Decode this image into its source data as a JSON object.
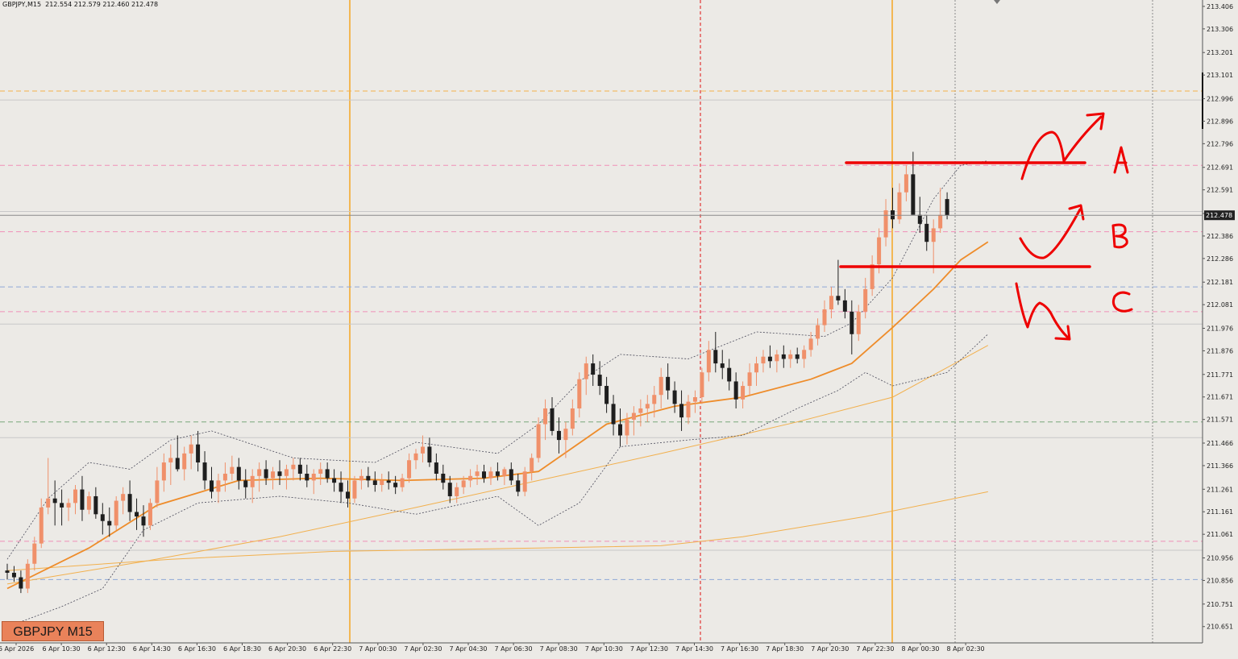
{
  "header": {
    "symbol_timeframe": "GBPJPY,M15",
    "ohlc": "212.554 212.579 212.460 212.478"
  },
  "badge": {
    "label": "GBPJPY M15"
  },
  "colors": {
    "background": "#eceae6",
    "bull_candle": "#f0906a",
    "bear_candle": "#1e1e1e",
    "ma_fast": "#ee8c2a",
    "ma_slow": "#f2b04d",
    "bollinger": "#4a4a5a",
    "annotation_red": "#ee0000",
    "current_price_tag": "#222222"
  },
  "chart_data": {
    "type": "candlestick",
    "symbol": "GBPJPY",
    "timeframe": "M15",
    "ylim": [
      210.6,
      213.42
    ],
    "current_price": 212.478,
    "price_ticks": [
      "213.406",
      "213.306",
      "213.201",
      "213.101",
      "212.996",
      "212.896",
      "212.796",
      "212.691",
      "212.591",
      "212.486",
      "212.386",
      "212.286",
      "212.181",
      "212.081",
      "211.976",
      "211.876",
      "211.771",
      "211.671",
      "211.571",
      "211.466",
      "211.366",
      "211.261",
      "211.161",
      "211.061",
      "210.956",
      "210.856",
      "210.751",
      "210.651"
    ],
    "time_ticks": [
      "6 Apr 2026",
      "6 Apr 10:30",
      "6 Apr 12:30",
      "6 Apr 14:30",
      "6 Apr 16:30",
      "6 Apr 18:30",
      "6 Apr 20:30",
      "6 Apr 22:30",
      "7 Apr 00:30",
      "7 Apr 02:30",
      "7 Apr 04:30",
      "7 Apr 06:30",
      "7 Apr 08:30",
      "7 Apr 10:30",
      "7 Apr 12:30",
      "7 Apr 14:30",
      "7 Apr 16:30",
      "7 Apr 18:30",
      "7 Apr 20:30",
      "7 Apr 22:30",
      "8 Apr 00:30",
      "8 Apr 02:30"
    ],
    "horizontal_levels": [
      {
        "price": 213.03,
        "style": "dashed",
        "color": "#f5b24a"
      },
      {
        "price": 212.99,
        "style": "solid",
        "color": "#c8c8c8"
      },
      {
        "price": 212.7,
        "style": "dashed",
        "color": "#f08fb8"
      },
      {
        "price": 212.495,
        "style": "solid",
        "color": "#c8c8c8"
      },
      {
        "price": 212.405,
        "style": "dashed",
        "color": "#f08fb8"
      },
      {
        "price": 212.16,
        "style": "dashed",
        "color": "#8fa8d6"
      },
      {
        "price": 212.05,
        "style": "dashed",
        "color": "#f08fb8"
      },
      {
        "price": 211.995,
        "style": "solid",
        "color": "#c8c8c8"
      },
      {
        "price": 211.56,
        "style": "dashed",
        "color": "#79a87a"
      },
      {
        "price": 211.49,
        "style": "solid",
        "color": "#c8c8c8"
      },
      {
        "price": 211.03,
        "style": "dashed",
        "color": "#f08fb8"
      },
      {
        "price": 210.99,
        "style": "solid",
        "color": "#c8c8c8"
      },
      {
        "price": 210.86,
        "style": "dashed",
        "color": "#8fa8d6"
      }
    ],
    "annotations": [
      {
        "label": "A",
        "level": 212.703
      },
      {
        "label": "B",
        "level": 212.405
      },
      {
        "label": "C",
        "level": 212.165
      }
    ],
    "candles": [
      [
        210.9,
        210.93,
        210.86,
        210.89
      ],
      [
        210.89,
        210.92,
        210.85,
        210.87
      ],
      [
        210.87,
        210.9,
        210.8,
        210.82
      ],
      [
        210.82,
        210.95,
        210.8,
        210.93
      ],
      [
        210.93,
        211.05,
        210.9,
        211.02
      ],
      [
        211.02,
        211.22,
        211.0,
        211.18
      ],
      [
        211.18,
        211.4,
        211.15,
        211.22
      ],
      [
        211.22,
        211.3,
        211.1,
        211.2
      ],
      [
        211.2,
        211.26,
        211.1,
        211.18
      ],
      [
        211.18,
        211.22,
        211.12,
        211.2
      ],
      [
        211.2,
        211.28,
        211.15,
        211.26
      ],
      [
        211.26,
        211.32,
        211.12,
        211.17
      ],
      [
        211.17,
        211.25,
        211.15,
        211.23
      ],
      [
        211.23,
        211.27,
        211.13,
        211.15
      ],
      [
        211.15,
        211.2,
        211.06,
        211.12
      ],
      [
        211.12,
        211.18,
        211.05,
        211.1
      ],
      [
        211.1,
        211.23,
        211.08,
        211.21
      ],
      [
        211.21,
        211.27,
        211.15,
        211.24
      ],
      [
        211.24,
        211.3,
        211.12,
        211.16
      ],
      [
        211.16,
        211.22,
        211.08,
        211.14
      ],
      [
        211.14,
        211.19,
        211.05,
        211.1
      ],
      [
        211.1,
        211.22,
        211.08,
        211.2
      ],
      [
        211.2,
        211.36,
        211.18,
        211.3
      ],
      [
        211.3,
        211.42,
        211.25,
        211.38
      ],
      [
        211.38,
        211.46,
        211.28,
        211.4
      ],
      [
        211.4,
        211.5,
        211.34,
        211.35
      ],
      [
        211.35,
        211.45,
        211.3,
        211.42
      ],
      [
        211.42,
        211.5,
        211.35,
        211.46
      ],
      [
        211.46,
        211.52,
        211.34,
        211.38
      ],
      [
        211.38,
        211.43,
        211.26,
        211.3
      ],
      [
        211.3,
        211.36,
        211.22,
        211.25
      ],
      [
        211.25,
        211.33,
        211.2,
        211.3
      ],
      [
        211.3,
        211.38,
        211.25,
        211.33
      ],
      [
        211.33,
        211.41,
        211.3,
        211.36
      ],
      [
        211.36,
        211.4,
        211.26,
        211.3
      ],
      [
        211.3,
        211.35,
        211.22,
        211.27
      ],
      [
        211.27,
        211.35,
        211.2,
        211.32
      ],
      [
        211.32,
        211.38,
        211.25,
        211.35
      ],
      [
        211.35,
        211.39,
        211.28,
        211.31
      ],
      [
        211.31,
        211.36,
        211.26,
        211.34
      ],
      [
        211.34,
        211.39,
        211.28,
        211.32
      ],
      [
        211.32,
        211.37,
        211.26,
        211.35
      ],
      [
        211.35,
        211.4,
        211.3,
        211.37
      ],
      [
        211.37,
        211.4,
        211.3,
        211.33
      ],
      [
        211.33,
        211.37,
        211.27,
        211.3
      ],
      [
        211.3,
        211.35,
        211.24,
        211.33
      ],
      [
        211.33,
        211.38,
        211.28,
        211.35
      ],
      [
        211.35,
        211.38,
        211.29,
        211.31
      ],
      [
        211.31,
        211.35,
        211.25,
        211.29
      ],
      [
        211.29,
        211.34,
        211.2,
        211.25
      ],
      [
        211.25,
        211.3,
        211.18,
        211.22
      ],
      [
        211.22,
        211.32,
        211.2,
        211.3
      ],
      [
        211.3,
        211.35,
        211.26,
        211.32
      ],
      [
        211.32,
        211.36,
        211.27,
        211.3
      ],
      [
        211.3,
        211.34,
        211.25,
        211.28
      ],
      [
        211.28,
        211.33,
        211.25,
        211.3
      ],
      [
        211.3,
        211.34,
        211.26,
        211.29
      ],
      [
        211.29,
        211.32,
        211.24,
        211.27
      ],
      [
        211.27,
        211.33,
        211.25,
        211.31
      ],
      [
        211.31,
        211.42,
        211.29,
        211.39
      ],
      [
        211.39,
        211.44,
        211.35,
        211.42
      ],
      [
        211.42,
        211.5,
        211.38,
        211.45
      ],
      [
        211.45,
        211.49,
        211.36,
        211.38
      ],
      [
        211.38,
        211.42,
        211.3,
        211.33
      ],
      [
        211.33,
        211.37,
        211.26,
        211.29
      ],
      [
        211.29,
        211.32,
        211.2,
        211.23
      ],
      [
        211.23,
        211.29,
        211.2,
        211.27
      ],
      [
        211.27,
        211.32,
        211.24,
        211.3
      ],
      [
        211.3,
        211.35,
        211.27,
        211.32
      ],
      [
        211.32,
        211.37,
        211.28,
        211.34
      ],
      [
        211.34,
        211.37,
        211.29,
        211.31
      ],
      [
        211.31,
        211.36,
        211.28,
        211.34
      ],
      [
        211.34,
        211.38,
        211.3,
        211.32
      ],
      [
        211.32,
        211.36,
        211.28,
        211.35
      ],
      [
        211.35,
        211.38,
        211.28,
        211.3
      ],
      [
        211.3,
        211.33,
        211.23,
        211.25
      ],
      [
        211.25,
        211.36,
        211.23,
        211.34
      ],
      [
        211.34,
        211.42,
        211.3,
        211.4
      ],
      [
        211.4,
        211.58,
        211.38,
        211.55
      ],
      [
        211.55,
        211.66,
        211.48,
        211.62
      ],
      [
        211.62,
        211.67,
        211.5,
        211.52
      ],
      [
        211.52,
        211.58,
        211.42,
        211.48
      ],
      [
        211.48,
        211.56,
        211.4,
        211.53
      ],
      [
        211.53,
        211.66,
        211.5,
        211.62
      ],
      [
        211.62,
        211.78,
        211.58,
        211.75
      ],
      [
        211.75,
        211.85,
        211.68,
        211.82
      ],
      [
        211.82,
        211.86,
        211.72,
        211.77
      ],
      [
        211.77,
        211.83,
        211.68,
        211.72
      ],
      [
        211.72,
        211.76,
        211.6,
        211.64
      ],
      [
        211.64,
        211.68,
        211.5,
        211.55
      ],
      [
        211.55,
        211.62,
        211.45,
        211.5
      ],
      [
        211.5,
        211.6,
        211.46,
        211.57
      ],
      [
        211.57,
        211.63,
        211.5,
        211.6
      ],
      [
        211.6,
        211.66,
        211.54,
        211.62
      ],
      [
        211.62,
        211.68,
        211.56,
        211.64
      ],
      [
        211.64,
        211.72,
        211.58,
        211.68
      ],
      [
        211.68,
        211.8,
        211.62,
        211.76
      ],
      [
        211.76,
        211.82,
        211.66,
        211.7
      ],
      [
        211.7,
        211.74,
        211.6,
        211.64
      ],
      [
        211.64,
        211.7,
        211.52,
        211.58
      ],
      [
        211.58,
        211.68,
        211.55,
        211.65
      ],
      [
        211.65,
        211.7,
        211.6,
        211.67
      ],
      [
        211.67,
        211.8,
        211.64,
        211.78
      ],
      [
        211.78,
        211.92,
        211.74,
        211.88
      ],
      [
        211.88,
        211.96,
        211.78,
        211.82
      ],
      [
        211.82,
        211.88,
        211.75,
        211.8
      ],
      [
        211.8,
        211.84,
        211.7,
        211.74
      ],
      [
        211.74,
        211.78,
        211.62,
        211.66
      ],
      [
        211.66,
        211.74,
        211.62,
        211.72
      ],
      [
        211.72,
        211.82,
        211.68,
        211.78
      ],
      [
        211.78,
        211.85,
        211.72,
        211.82
      ],
      [
        211.82,
        211.88,
        211.78,
        211.85
      ],
      [
        211.85,
        211.9,
        211.8,
        211.83
      ],
      [
        211.83,
        211.88,
        211.78,
        211.86
      ],
      [
        211.86,
        211.9,
        211.8,
        211.84
      ],
      [
        211.84,
        211.88,
        211.8,
        211.86
      ],
      [
        211.86,
        211.89,
        211.82,
        211.84
      ],
      [
        211.84,
        211.9,
        211.8,
        211.88
      ],
      [
        211.88,
        211.96,
        211.85,
        211.93
      ],
      [
        211.93,
        212.02,
        211.9,
        211.99
      ],
      [
        211.99,
        212.1,
        211.96,
        212.06
      ],
      [
        212.06,
        212.16,
        212.02,
        212.12
      ],
      [
        212.12,
        212.28,
        212.08,
        212.1
      ],
      [
        212.1,
        212.15,
        212.02,
        212.05
      ],
      [
        212.05,
        212.1,
        211.86,
        211.95
      ],
      [
        211.95,
        212.08,
        211.92,
        212.05
      ],
      [
        212.05,
        212.2,
        212.02,
        212.15
      ],
      [
        212.15,
        212.3,
        212.12,
        212.26
      ],
      [
        212.26,
        212.42,
        212.22,
        212.38
      ],
      [
        212.38,
        212.55,
        212.34,
        212.5
      ],
      [
        212.5,
        212.6,
        212.42,
        212.46
      ],
      [
        212.46,
        212.62,
        212.44,
        212.58
      ],
      [
        212.58,
        212.7,
        212.54,
        212.66
      ],
      [
        212.66,
        212.76,
        212.5,
        212.48
      ],
      [
        212.48,
        212.56,
        212.4,
        212.44
      ],
      [
        212.44,
        212.48,
        212.32,
        212.36
      ],
      [
        212.36,
        212.46,
        212.22,
        212.42
      ],
      [
        212.42,
        212.6,
        212.4,
        212.48
      ],
      [
        212.55,
        212.58,
        212.46,
        212.478
      ]
    ],
    "ma_fast": [
      [
        0,
        210.82
      ],
      [
        12,
        211.0
      ],
      [
        22,
        211.19
      ],
      [
        34,
        211.3
      ],
      [
        46,
        211.31
      ],
      [
        58,
        211.3
      ],
      [
        70,
        211.31
      ],
      [
        78,
        211.34
      ],
      [
        88,
        211.55
      ],
      [
        98,
        211.63
      ],
      [
        108,
        211.67
      ],
      [
        118,
        211.75
      ],
      [
        124,
        211.82
      ],
      [
        130,
        211.98
      ],
      [
        136,
        212.15
      ],
      [
        140,
        212.28
      ],
      [
        144,
        212.36
      ]
    ],
    "ma_slow": [
      [
        0,
        210.84
      ],
      [
        20,
        210.94
      ],
      [
        40,
        211.05
      ],
      [
        60,
        211.18
      ],
      [
        78,
        211.3
      ],
      [
        96,
        211.42
      ],
      [
        116,
        211.56
      ],
      [
        130,
        211.67
      ],
      [
        144,
        211.9
      ]
    ],
    "ma_long": [
      [
        0,
        210.9
      ],
      [
        24,
        210.95
      ],
      [
        48,
        210.985
      ],
      [
        78,
        211.0
      ],
      [
        96,
        211.01
      ],
      [
        108,
        211.05
      ],
      [
        126,
        211.14
      ],
      [
        144,
        211.25
      ]
    ],
    "bb_upper": [
      [
        0,
        210.95
      ],
      [
        6,
        211.22
      ],
      [
        12,
        211.38
      ],
      [
        18,
        211.35
      ],
      [
        24,
        211.48
      ],
      [
        30,
        211.52
      ],
      [
        42,
        211.4
      ],
      [
        54,
        211.38
      ],
      [
        60,
        211.47
      ],
      [
        72,
        211.42
      ],
      [
        78,
        211.55
      ],
      [
        84,
        211.74
      ],
      [
        90,
        211.86
      ],
      [
        100,
        211.84
      ],
      [
        110,
        211.96
      ],
      [
        120,
        211.94
      ],
      [
        124,
        212.0
      ],
      [
        130,
        212.2
      ],
      [
        136,
        212.55
      ],
      [
        140,
        212.7
      ],
      [
        144,
        212.72
      ]
    ],
    "bb_lower": [
      [
        0,
        210.65
      ],
      [
        8,
        210.74
      ],
      [
        14,
        210.82
      ],
      [
        20,
        211.08
      ],
      [
        28,
        211.2
      ],
      [
        40,
        211.23
      ],
      [
        50,
        211.2
      ],
      [
        60,
        211.15
      ],
      [
        72,
        211.23
      ],
      [
        78,
        211.1
      ],
      [
        84,
        211.2
      ],
      [
        90,
        211.45
      ],
      [
        100,
        211.48
      ],
      [
        108,
        211.5
      ],
      [
        116,
        211.62
      ],
      [
        122,
        211.7
      ],
      [
        126,
        211.78
      ],
      [
        130,
        211.72
      ],
      [
        134,
        211.75
      ],
      [
        138,
        211.78
      ],
      [
        144,
        211.95
      ]
    ]
  }
}
